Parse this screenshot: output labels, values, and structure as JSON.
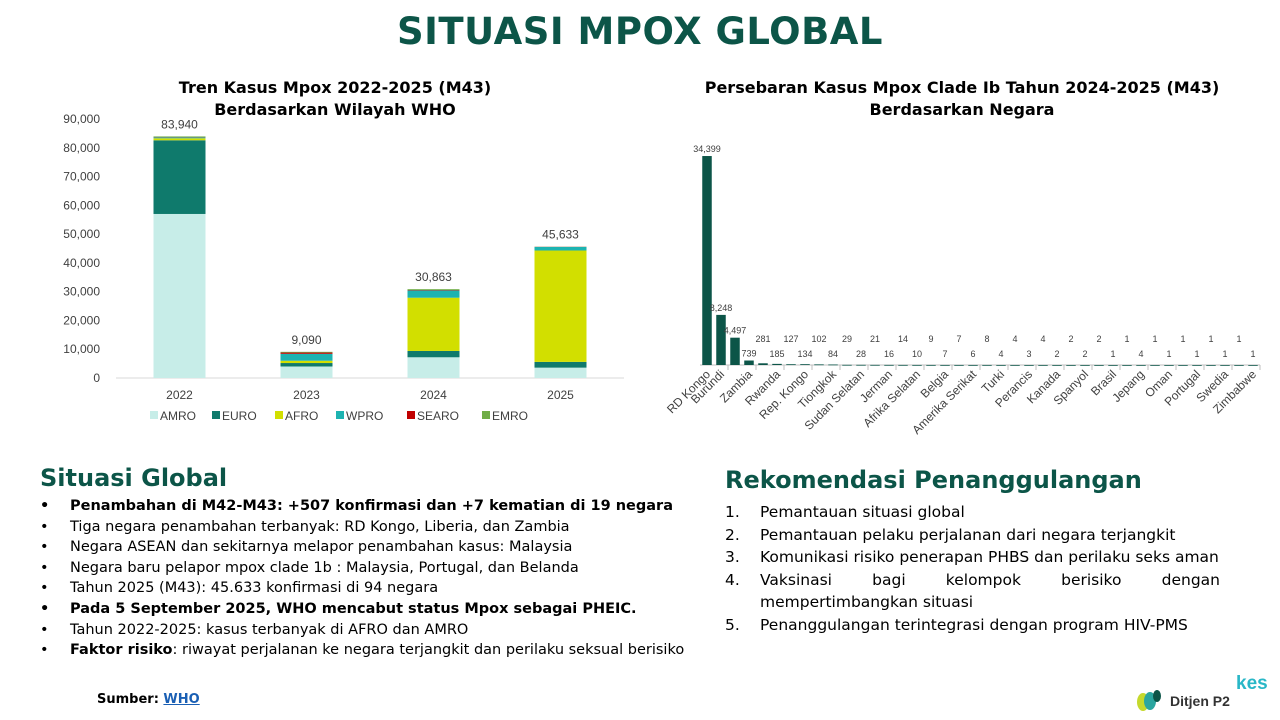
{
  "page": {
    "title": "SITUASI MPOX GLOBAL"
  },
  "colors": {
    "AMRO": "#c7ede8",
    "EURO": "#0f7a6c",
    "AFRO": "#d2df00",
    "WPRO": "#1db3b1",
    "SEARO": "#c00000",
    "EMRO": "#70ad47",
    "clade_bar": "#0c5548",
    "title_green": "#0c5548"
  },
  "chart_data": [
    {
      "type": "bar",
      "stacked": true,
      "title_line1": "Tren Kasus Mpox 2022-2025 (M43)",
      "title_line2": "Berdasarkan Wilayah WHO",
      "categories": [
        "2022",
        "2023",
        "2024",
        "2025"
      ],
      "series": [
        {
          "name": "AMRO",
          "values": [
            57000,
            4000,
            7200,
            3600
          ]
        },
        {
          "name": "EURO",
          "values": [
            25600,
            1200,
            2200,
            2000
          ]
        },
        {
          "name": "AFRO",
          "values": [
            700,
            800,
            18500,
            38700
          ]
        },
        {
          "name": "WPRO",
          "values": [
            300,
            2400,
            2500,
            1250
          ]
        },
        {
          "name": "SEARO",
          "values": [
            100,
            440,
            150,
            50
          ]
        },
        {
          "name": "EMRO",
          "values": [
            240,
            250,
            313,
            33
          ]
        }
      ],
      "totals": [
        "83,940",
        "9,090",
        "30,863",
        "45,633"
      ],
      "total_values": [
        83940,
        9090,
        30863,
        45633
      ],
      "ylim": [
        0,
        90000
      ],
      "yticks": [
        "0",
        "10,000",
        "20,000",
        "30,000",
        "40,000",
        "50,000",
        "60,000",
        "70,000",
        "80,000",
        "90,000"
      ],
      "legend_position": "bottom"
    },
    {
      "type": "bar",
      "title_line1": "Persebaran Kasus Mpox Clade Ib Tahun 2024-2025 (M43)",
      "title_line2": "Berdasarkan Negara",
      "bars": [
        {
          "value": 34399,
          "label": "34,399",
          "category": "RD Kongo"
        },
        {
          "value": 8248,
          "label": "8,248",
          "category": "Burundi"
        },
        {
          "value": 4497,
          "label": "4,497",
          "category": ""
        },
        {
          "value": 739,
          "label": "739",
          "category": "Zambia"
        },
        {
          "value": 281,
          "label": "281",
          "category": ""
        },
        {
          "value": 185,
          "label": "185",
          "category": "Rwanda"
        },
        {
          "value": 127,
          "label": "127",
          "category": ""
        },
        {
          "value": 134,
          "label": "134",
          "category": "Rep. Kongo"
        },
        {
          "value": 102,
          "label": "102",
          "category": ""
        },
        {
          "value": 84,
          "label": "84",
          "category": "Tiongkok"
        },
        {
          "value": 29,
          "label": "29",
          "category": ""
        },
        {
          "value": 28,
          "label": "28",
          "category": "Sudan Selatan"
        },
        {
          "value": 21,
          "label": "21",
          "category": ""
        },
        {
          "value": 16,
          "label": "16",
          "category": "Jerman"
        },
        {
          "value": 14,
          "label": "14",
          "category": ""
        },
        {
          "value": 10,
          "label": "10",
          "category": "Afrika Selatan"
        },
        {
          "value": 9,
          "label": "9",
          "category": ""
        },
        {
          "value": 7,
          "label": "7",
          "category": "Belgia"
        },
        {
          "value": 7,
          "label": "7",
          "category": ""
        },
        {
          "value": 6,
          "label": "6",
          "category": "Amerika Serikat"
        },
        {
          "value": 8,
          "label": "8",
          "category": ""
        },
        {
          "value": 4,
          "label": "4",
          "category": "Turki"
        },
        {
          "value": 4,
          "label": "4",
          "category": ""
        },
        {
          "value": 3,
          "label": "3",
          "category": "Perancis"
        },
        {
          "value": 4,
          "label": "4",
          "category": ""
        },
        {
          "value": 2,
          "label": "2",
          "category": "Kanada"
        },
        {
          "value": 2,
          "label": "2",
          "category": ""
        },
        {
          "value": 2,
          "label": "2",
          "category": "Spanyol"
        },
        {
          "value": 2,
          "label": "2",
          "category": ""
        },
        {
          "value": 1,
          "label": "1",
          "category": "Brasil"
        },
        {
          "value": 1,
          "label": "1",
          "category": ""
        },
        {
          "value": 4,
          "label": "4",
          "category": "Jepang"
        },
        {
          "value": 1,
          "label": "1",
          "category": ""
        },
        {
          "value": 1,
          "label": "1",
          "category": "Oman"
        },
        {
          "value": 1,
          "label": "1",
          "category": ""
        },
        {
          "value": 1,
          "label": "1",
          "category": "Portugal"
        },
        {
          "value": 1,
          "label": "1",
          "category": ""
        },
        {
          "value": 1,
          "label": "1",
          "category": "Swedia"
        },
        {
          "value": 1,
          "label": "1",
          "category": ""
        },
        {
          "value": 1,
          "label": "1",
          "category": "Zimbabwe"
        }
      ],
      "ylim": [
        0,
        40000
      ]
    }
  ],
  "situasi": {
    "title": "Situasi Global",
    "items": [
      {
        "text": "Penambahan di M42-M43: +507 konfirmasi dan +7 kematian di 19 negara"
      },
      {
        "text": "Tiga negara penambahan terbanyak:  RD Kongo, Liberia, dan Zambia"
      },
      {
        "text": "Negara ASEAN dan sekitarnya melapor penambahan kasus: Malaysia"
      },
      {
        "text": "Negara baru pelapor mpox clade 1b : Malaysia, Portugal, dan Belanda"
      },
      {
        "text": "Tahun 2025 (M43): 45.633 konfirmasi di 94 negara"
      },
      {
        "text": "Pada 5 September 2025, WHO mencabut status Mpox sebagai PHEIC."
      },
      {
        "text": "Tahun 2022-2025: kasus terbanyak di AFRO dan AMRO"
      },
      {
        "bold": "Faktor risiko",
        "text": ": riwayat perjalanan ke negara terjangkit dan perilaku seksual berisiko"
      }
    ]
  },
  "rekomendasi": {
    "title": "Rekomendasi Penanggulangan",
    "items": [
      {
        "num": "1.",
        "text": "Pemantauan situasi global"
      },
      {
        "num": "2.",
        "text": "Pemantauan pelaku perjalanan dari negara terjangkit"
      },
      {
        "num": "3.",
        "text": "Komunikasi risiko penerapan PHBS dan perilaku seks aman"
      },
      {
        "num": "4.",
        "text": "Vaksinasi bagi kelompok berisiko dengan mempertimbangkan situasi"
      },
      {
        "num": "5.",
        "text": "Penanggulangan terintegrasi dengan program HIV-PMS"
      }
    ]
  },
  "source": {
    "label": "Sumber: ",
    "link": "WHO"
  },
  "logo": {
    "name": "Ditjen P2",
    "tag": "kes"
  }
}
